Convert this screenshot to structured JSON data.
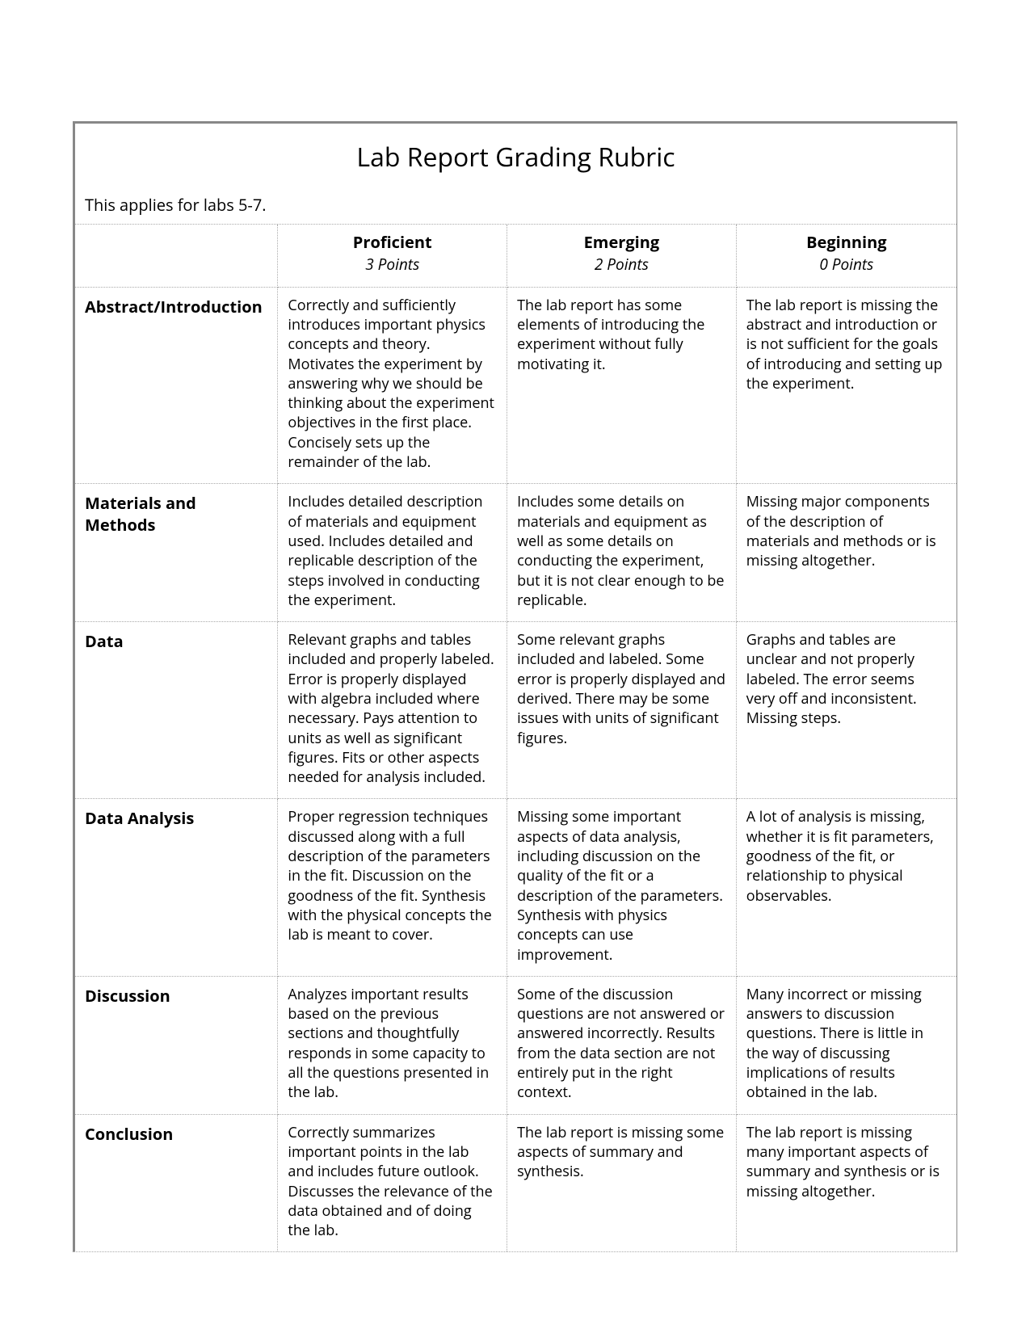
{
  "title": "Lab Report Grading Rubric",
  "subtitle": "This applies for labs 5-7.",
  "levels": [
    {
      "name": "Proficient",
      "points": "3 Points"
    },
    {
      "name": "Emerging",
      "points": "2 Points"
    },
    {
      "name": "Beginning",
      "points": "0 Points"
    }
  ],
  "rows": [
    {
      "label": "Abstract/Introduction",
      "cells": [
        "Correctly and sufficiently introduces important physics concepts and theory. Motivates the experiment by answering why we should be thinking about the experiment objectives in the first place. Concisely sets up the remainder of the lab.",
        "The lab report has some elements of introducing the experiment without fully motivating it.",
        "The lab report is missing the abstract and introduction or is not sufficient for the goals of introducing and setting up the experiment."
      ]
    },
    {
      "label": "Materials and Methods",
      "cells": [
        "Includes detailed description of materials and equipment used. Includes detailed and replicable description of the steps involved in conducting the experiment.",
        "Includes some details on materials and equipment as well as some details on conducting the experiment, but it is not clear enough to be replicable.",
        "Missing major components of the description of materials and methods or is missing altogether."
      ]
    },
    {
      "label": "Data",
      "cells": [
        "Relevant graphs and tables included and properly labeled. Error is properly displayed with algebra included where necessary. Pays attention to units as well as significant figures. Fits or other aspects needed for analysis included.",
        "Some relevant graphs included and labeled. Some error is properly displayed and derived. There may be some issues with units of significant figures.",
        "Graphs and tables are unclear and not properly labeled. The error seems very off and inconsistent. Missing steps."
      ]
    },
    {
      "label": "Data Analysis",
      "cells": [
        "Proper regression techniques discussed along with a full description of the parameters in the fit. Discussion on the goodness of the fit. Synthesis with the physical concepts the lab is meant to cover.",
        "Missing some important aspects of data analysis, including discussion on the quality of the fit or a description of the parameters. Synthesis with physics concepts can use improvement.",
        "A lot of analysis is missing, whether it is fit parameters, goodness of the fit, or relationship to physical observables."
      ]
    },
    {
      "label": "Discussion",
      "cells": [
        "Analyzes important results based on the previous sections and thoughtfully responds in some capacity to all the questions presented in the lab.",
        "Some of the discussion questions are not answered or answered incorrectly. Results from the data section are not entirely put in the right context.",
        "Many incorrect or missing answers to discussion questions. There is little in the way of discussing implications of results obtained in the lab."
      ]
    },
    {
      "label": "Conclusion",
      "cells": [
        "Correctly summarizes important points in the lab and includes future outlook. Discusses the relevance of the data obtained and of doing the lab.",
        "The lab report is missing some aspects of summary and synthesis.",
        "The lab report is missing many important aspects of summary and synthesis or is missing altogether."
      ]
    }
  ]
}
